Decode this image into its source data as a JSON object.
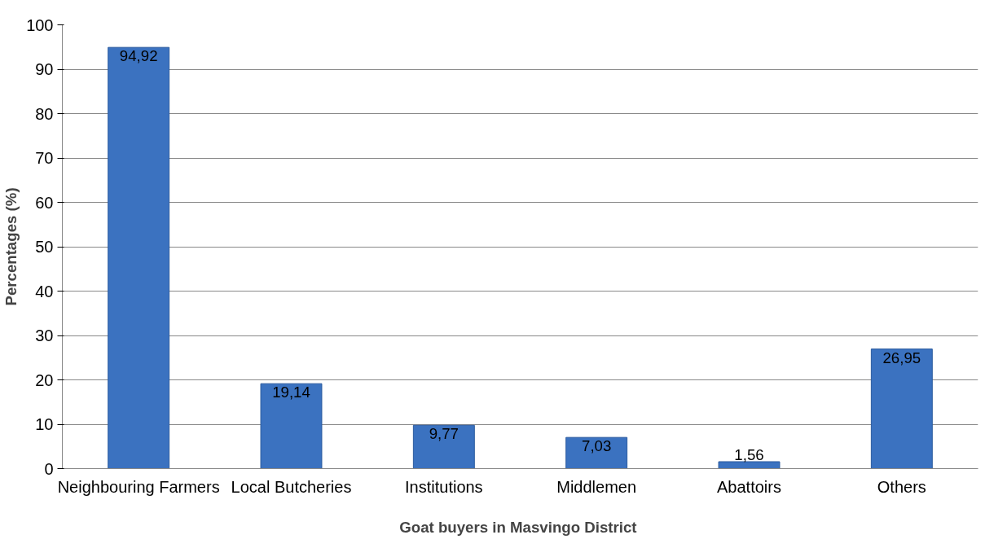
{
  "chart_data": {
    "type": "bar",
    "xlabel": "Goat buyers  in Masvingo District",
    "ylabel": "Percentages (%)",
    "categories": [
      "Neighbouring Farmers",
      "Local Butcheries",
      "Institutions",
      "Middlemen",
      "Abattoirs",
      "Others"
    ],
    "values": [
      94.92,
      19.14,
      9.77,
      7.03,
      1.56,
      26.95
    ],
    "value_labels": [
      "94,92",
      "19,14",
      "9,77",
      "7,03",
      "1,56",
      "26,95"
    ],
    "color": "#3b72c0",
    "ylim": [
      0,
      100
    ],
    "yticks": [
      0,
      10,
      20,
      30,
      40,
      50,
      60,
      70,
      80,
      90,
      100
    ],
    "grid": "y"
  }
}
